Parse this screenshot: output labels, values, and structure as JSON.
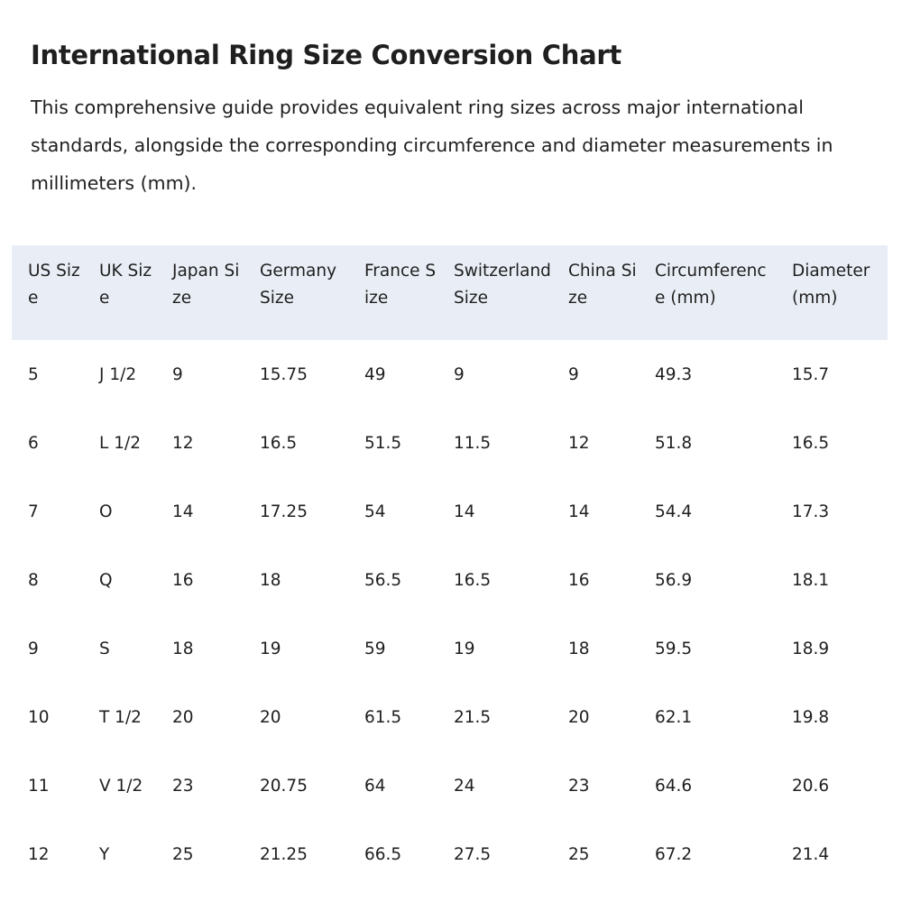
{
  "header": {
    "title": "International Ring Size Conversion Chart",
    "description": "This comprehensive guide provides equivalent ring sizes across major international standards, alongside the corresponding circumference and diameter measurements in millimeters (mm)."
  },
  "table": {
    "columns": [
      "US Size",
      "UK Size",
      "Japan Size",
      "Germany Size",
      "France Size",
      "Switzerland Size",
      "China Size",
      "Circumference (mm)",
      "Diameter (mm)"
    ],
    "rows": [
      [
        "5",
        "J 1/2",
        "9",
        "15.75",
        "49",
        "9",
        "9",
        "49.3",
        "15.7"
      ],
      [
        "6",
        "L 1/2",
        "12",
        "16.5",
        "51.5",
        "11.5",
        "12",
        "51.8",
        "16.5"
      ],
      [
        "7",
        "O",
        "14",
        "17.25",
        "54",
        "14",
        "14",
        "54.4",
        "17.3"
      ],
      [
        "8",
        "Q",
        "16",
        "18",
        "56.5",
        "16.5",
        "16",
        "56.9",
        "18.1"
      ],
      [
        "9",
        "S",
        "18",
        "19",
        "59",
        "19",
        "18",
        "59.5",
        "18.9"
      ],
      [
        "10",
        "T 1/2",
        "20",
        "20",
        "61.5",
        "21.5",
        "20",
        "62.1",
        "19.8"
      ],
      [
        "11",
        "V 1/2",
        "23",
        "20.75",
        "64",
        "24",
        "23",
        "64.6",
        "20.6"
      ],
      [
        "12",
        "Y",
        "25",
        "21.25",
        "66.5",
        "27.5",
        "25",
        "67.2",
        "21.4"
      ]
    ]
  }
}
